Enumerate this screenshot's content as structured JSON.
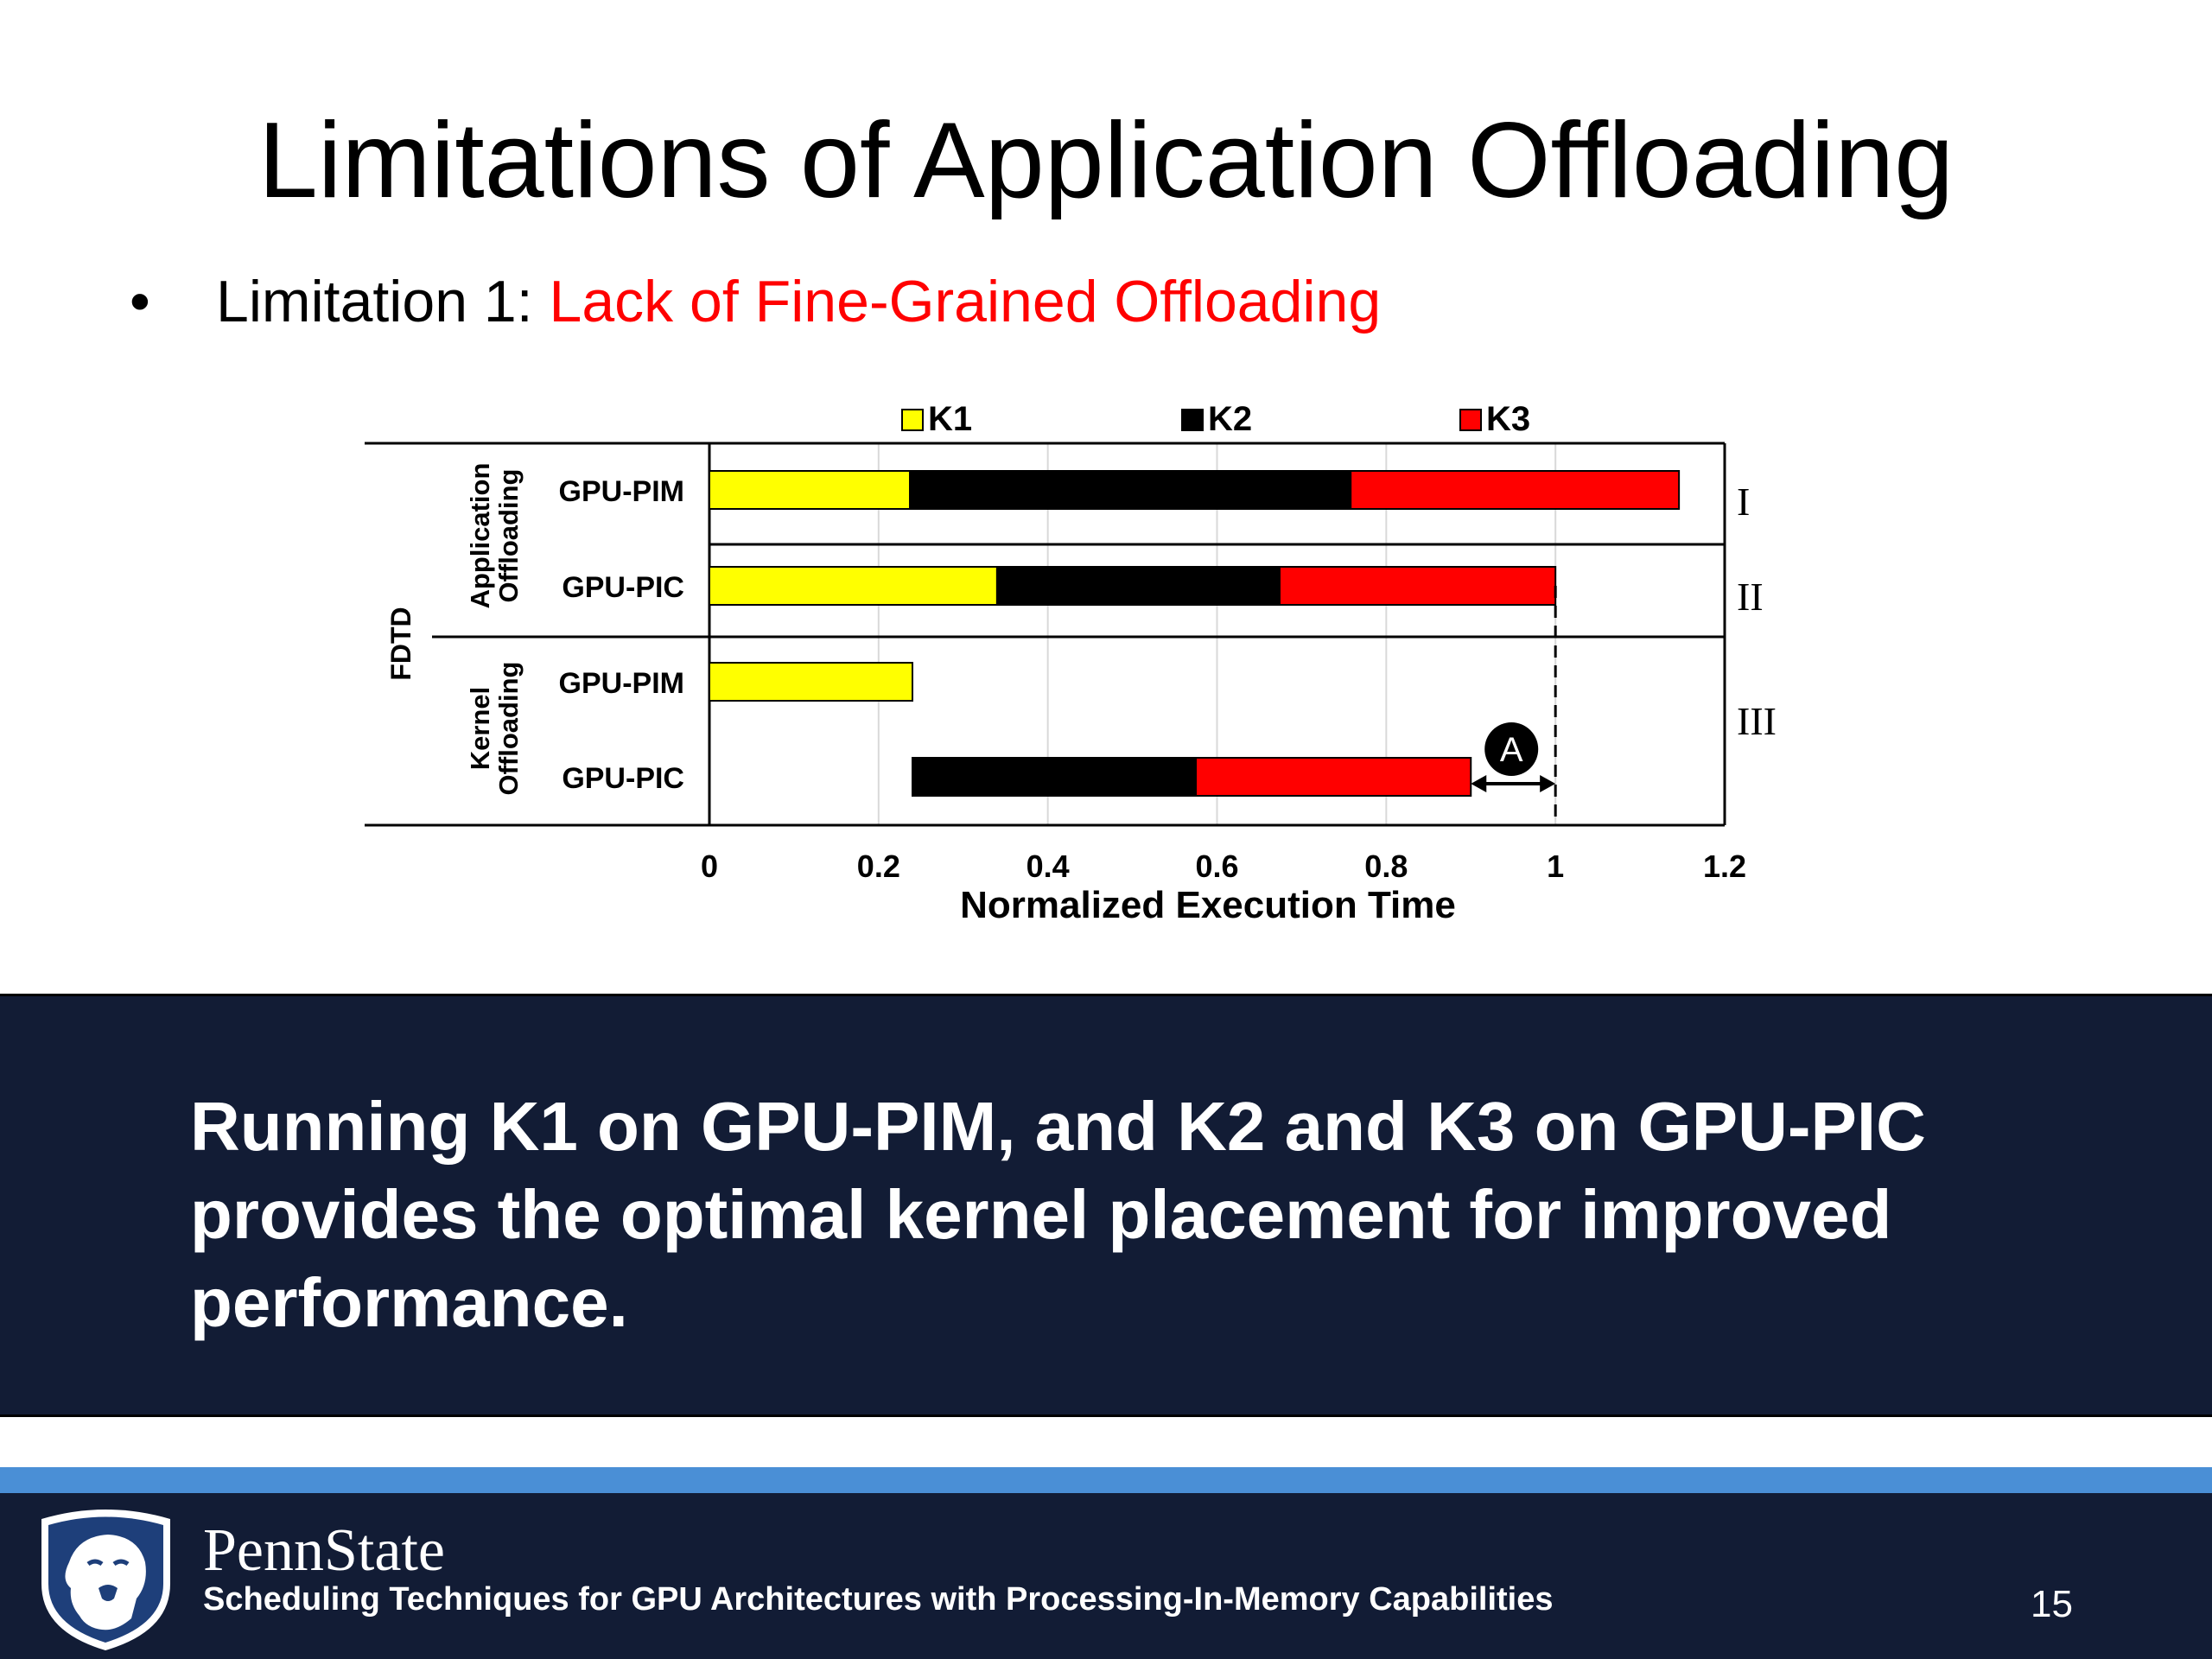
{
  "slide": {
    "title": "Limitations of Application Offloading",
    "bullet": {
      "marker": "•",
      "prefix": "Limitation 1: ",
      "highlight": "Lack of Fine-Grained Offloading"
    },
    "callout": "Running K1 on GPU-PIM, and K2 and K3 on GPU-PIC provides the optimal kernel placement for improved performance.",
    "footer": {
      "brand": "PennState",
      "subtitle": "Scheduling Techniques for GPU Architectures with Processing-In-Memory Capabilities",
      "page_number": "15"
    }
  },
  "chart_data": {
    "type": "bar",
    "orientation": "horizontal",
    "stacked": true,
    "xlabel": "Normalized Execution Time",
    "xlim": [
      0,
      1.2
    ],
    "xticks": [
      "0",
      "0.2",
      "0.4",
      "0.6",
      "0.8",
      "1",
      "1.2"
    ],
    "legend": [
      {
        "name": "K1",
        "color": "#ffff00"
      },
      {
        "name": "K2",
        "color": "#000000"
      },
      {
        "name": "K3",
        "color": "#ff0000"
      }
    ],
    "legend_position": "top",
    "outer_label": "FDTD",
    "groups": [
      {
        "name": "Application Offloading",
        "name_lines": [
          "Application",
          "Offloading"
        ],
        "roman": "I"
      },
      {
        "name": "Kernel Offloading",
        "name_lines": [
          "Kernel",
          "Offloading"
        ],
        "roman": "III"
      }
    ],
    "extra_roman": "II",
    "rows": [
      {
        "group": 0,
        "label": "GPU-PIM",
        "segments": [
          {
            "series": "K1",
            "start": 0,
            "end": 0.237
          },
          {
            "series": "K2",
            "start": 0.237,
            "end": 0.758
          },
          {
            "series": "K3",
            "start": 0.758,
            "end": 1.146
          }
        ]
      },
      {
        "group": 0,
        "label": "GPU-PIC",
        "segments": [
          {
            "series": "K1",
            "start": 0,
            "end": 0.34
          },
          {
            "series": "K2",
            "start": 0.34,
            "end": 0.674
          },
          {
            "series": "K3",
            "start": 0.674,
            "end": 1.0
          }
        ]
      },
      {
        "group": 1,
        "label": "GPU-PIM",
        "segments": [
          {
            "series": "K1",
            "start": 0,
            "end": 0.24
          }
        ]
      },
      {
        "group": 1,
        "label": "GPU-PIC",
        "segments": [
          {
            "series": "K2",
            "start": 0.24,
            "end": 0.575
          },
          {
            "series": "K3",
            "start": 0.575,
            "end": 0.9
          }
        ]
      }
    ],
    "reference_line_x": 1.0,
    "annotation": {
      "label": "A",
      "from_x": 0.9,
      "to_x": 1.0
    },
    "grid": true
  }
}
